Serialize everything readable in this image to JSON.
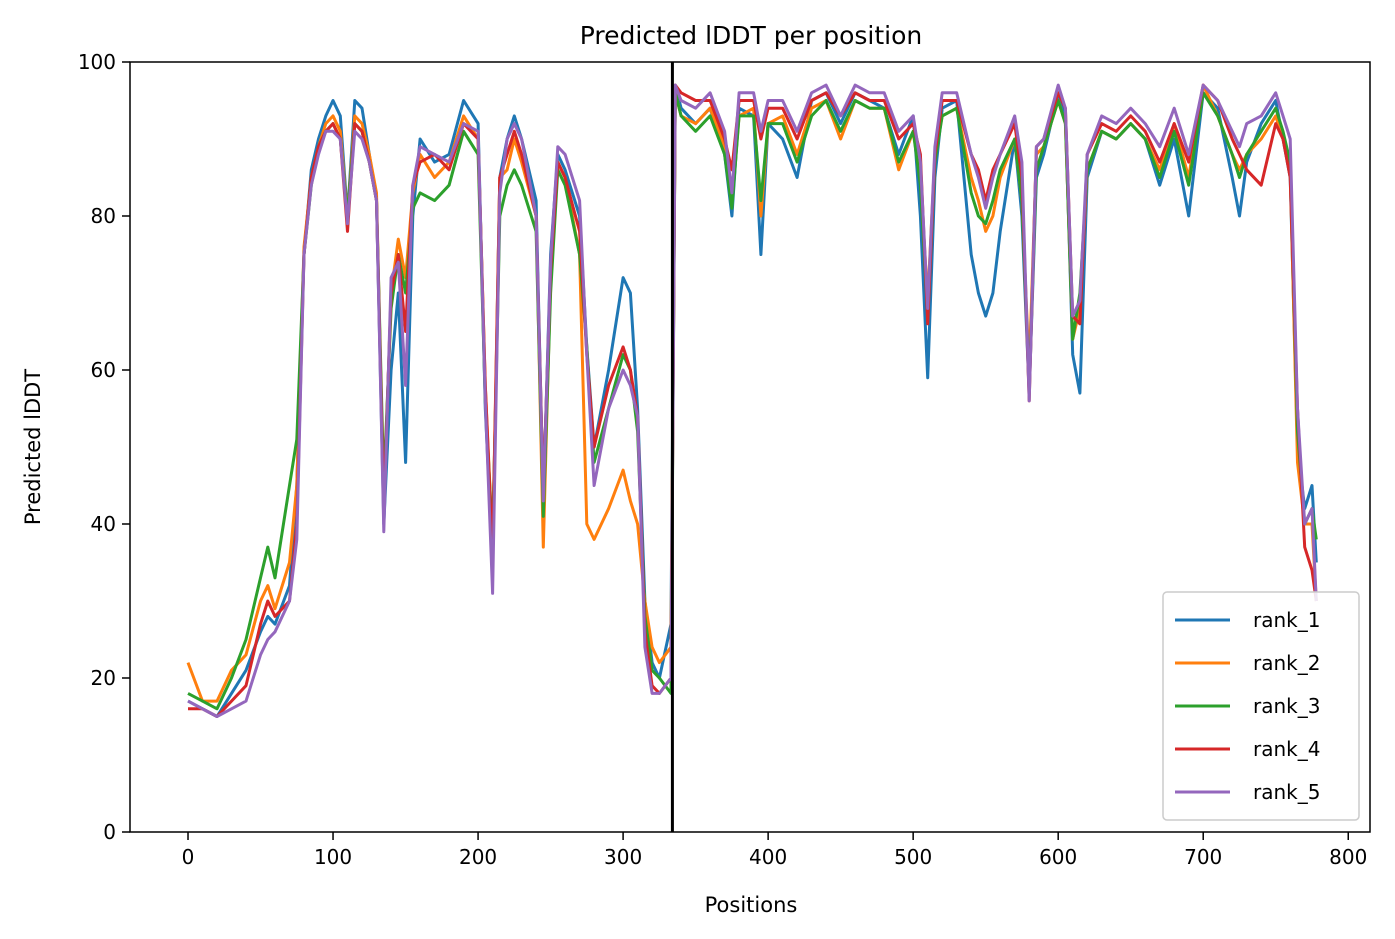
{
  "chart_data": {
    "type": "line",
    "title": "Predicted lDDT per position",
    "xlabel": "Positions",
    "ylabel": "Predicted lDDT",
    "xlim": [
      -40,
      815
    ],
    "ylim": [
      0,
      100
    ],
    "xticks": [
      0,
      100,
      200,
      300,
      400,
      500,
      600,
      700,
      800
    ],
    "yticks": [
      0,
      20,
      40,
      60,
      80,
      100
    ],
    "xtick_labels": [
      "0",
      "100",
      "200",
      "300",
      "400",
      "500",
      "600",
      "700",
      "800"
    ],
    "ytick_labels": [
      "0",
      "20",
      "40",
      "60",
      "80",
      "100"
    ],
    "grid": false,
    "legend_position": "lower-right",
    "chain_break_x": 334,
    "x": [
      0,
      10,
      20,
      30,
      40,
      50,
      55,
      60,
      70,
      75,
      80,
      85,
      90,
      95,
      100,
      105,
      110,
      115,
      120,
      125,
      130,
      135,
      140,
      145,
      150,
      155,
      160,
      170,
      180,
      190,
      200,
      205,
      210,
      215,
      220,
      225,
      230,
      240,
      245,
      250,
      255,
      260,
      270,
      275,
      280,
      290,
      300,
      305,
      310,
      315,
      320,
      325,
      333,
      336,
      340,
      350,
      360,
      370,
      375,
      380,
      390,
      395,
      400,
      410,
      420,
      430,
      440,
      450,
      460,
      470,
      480,
      490,
      500,
      505,
      510,
      515,
      520,
      530,
      540,
      545,
      550,
      555,
      560,
      570,
      575,
      580,
      585,
      590,
      600,
      605,
      610,
      615,
      620,
      630,
      640,
      650,
      660,
      670,
      680,
      690,
      700,
      710,
      720,
      725,
      730,
      740,
      750,
      755,
      760,
      765,
      770,
      775,
      778
    ],
    "series": [
      {
        "name": "rank_1",
        "color": "#1f77b4",
        "values": [
          17,
          16,
          15,
          18,
          21,
          26,
          28,
          27,
          32,
          45,
          75,
          86,
          90,
          93,
          95,
          93,
          80,
          95,
          94,
          88,
          82,
          40,
          60,
          70,
          48,
          80,
          90,
          87,
          88,
          95,
          92,
          55,
          35,
          85,
          90,
          93,
          90,
          82,
          43,
          75,
          88,
          86,
          80,
          63,
          50,
          60,
          72,
          70,
          55,
          30,
          22,
          20,
          27,
          97,
          94,
          92,
          94,
          88,
          80,
          94,
          93,
          75,
          92,
          90,
          85,
          95,
          96,
          92,
          96,
          95,
          94,
          88,
          93,
          80,
          59,
          85,
          94,
          95,
          75,
          70,
          67,
          70,
          78,
          90,
          80,
          57,
          85,
          88,
          96,
          93,
          62,
          57,
          85,
          91,
          90,
          92,
          90,
          84,
          90,
          80,
          96,
          94,
          85,
          80,
          87,
          92,
          95,
          90,
          85,
          50,
          42,
          45,
          35
        ]
      },
      {
        "name": "rank_2",
        "color": "#ff7f0e",
        "values": [
          22,
          17,
          17,
          21,
          23,
          30,
          32,
          29,
          35,
          45,
          76,
          85,
          89,
          92,
          93,
          91,
          80,
          93,
          92,
          88,
          83,
          42,
          70,
          77,
          72,
          83,
          88,
          85,
          87,
          93,
          90,
          58,
          37,
          85,
          86,
          90,
          87,
          80,
          37,
          72,
          87,
          85,
          75,
          40,
          38,
          42,
          47,
          43,
          40,
          30,
          24,
          22,
          24,
          96,
          93,
          92,
          94,
          89,
          82,
          93,
          94,
          80,
          92,
          93,
          88,
          94,
          95,
          90,
          95,
          94,
          94,
          86,
          91,
          85,
          69,
          88,
          93,
          94,
          85,
          82,
          78,
          80,
          85,
          90,
          82,
          60,
          88,
          89,
          95,
          92,
          64,
          68,
          86,
          91,
          90,
          92,
          90,
          86,
          92,
          85,
          97,
          93,
          88,
          86,
          88,
          90,
          93,
          90,
          86,
          48,
          40,
          40,
          30
        ]
      },
      {
        "name": "rank_3",
        "color": "#2ca02c",
        "values": [
          18,
          17,
          16,
          20,
          25,
          33,
          37,
          33,
          45,
          51,
          75,
          84,
          89,
          91,
          92,
          90,
          80,
          92,
          91,
          87,
          82,
          45,
          68,
          75,
          70,
          81,
          83,
          82,
          84,
          91,
          88,
          56,
          38,
          80,
          84,
          86,
          84,
          78,
          41,
          70,
          86,
          84,
          75,
          63,
          48,
          55,
          62,
          60,
          52,
          28,
          21,
          20,
          18,
          96,
          93,
          91,
          93,
          88,
          81,
          93,
          93,
          82,
          92,
          92,
          87,
          93,
          95,
          91,
          95,
          94,
          94,
          87,
          91,
          84,
          67,
          87,
          93,
          94,
          83,
          80,
          79,
          82,
          86,
          90,
          82,
          58,
          86,
          89,
          95,
          92,
          64,
          70,
          86,
          91,
          90,
          92,
          90,
          85,
          91,
          84,
          96,
          93,
          88,
          85,
          88,
          91,
          94,
          91,
          87,
          52,
          40,
          42,
          38
        ]
      },
      {
        "name": "rank_4",
        "color": "#d62728",
        "values": [
          16,
          16,
          15,
          17,
          19,
          27,
          30,
          28,
          30,
          40,
          75,
          85,
          89,
          91,
          92,
          90,
          78,
          92,
          91,
          87,
          82,
          42,
          70,
          75,
          65,
          84,
          87,
          88,
          86,
          92,
          90,
          58,
          36,
          85,
          88,
          91,
          88,
          80,
          44,
          73,
          87,
          85,
          78,
          62,
          50,
          58,
          63,
          60,
          54,
          26,
          19,
          18,
          20,
          97,
          96,
          95,
          95,
          90,
          86,
          95,
          95,
          90,
          94,
          94,
          90,
          95,
          96,
          93,
          96,
          95,
          95,
          90,
          92,
          88,
          66,
          88,
          95,
          95,
          88,
          86,
          82,
          86,
          88,
          92,
          85,
          56,
          89,
          90,
          96,
          94,
          67,
          66,
          88,
          92,
          91,
          93,
          91,
          87,
          92,
          87,
          97,
          95,
          90,
          88,
          86,
          84,
          92,
          90,
          85,
          55,
          37,
          34,
          30
        ]
      },
      {
        "name": "rank_5",
        "color": "#9467bd",
        "values": [
          17,
          16,
          15,
          16,
          17,
          23,
          25,
          26,
          30,
          38,
          75,
          84,
          88,
          91,
          91,
          90,
          79,
          91,
          90,
          87,
          82,
          39,
          72,
          74,
          58,
          84,
          89,
          88,
          87,
          92,
          91,
          56,
          31,
          83,
          90,
          92,
          90,
          80,
          43,
          74,
          89,
          88,
          82,
          62,
          45,
          55,
          60,
          58,
          54,
          24,
          18,
          18,
          20,
          97,
          95,
          94,
          96,
          91,
          83,
          96,
          96,
          91,
          95,
          95,
          91,
          96,
          97,
          93,
          97,
          96,
          96,
          91,
          93,
          87,
          68,
          89,
          96,
          96,
          88,
          85,
          81,
          85,
          88,
          93,
          87,
          56,
          89,
          90,
          97,
          94,
          67,
          69,
          88,
          93,
          92,
          94,
          92,
          89,
          94,
          88,
          97,
          95,
          91,
          89,
          92,
          93,
          96,
          93,
          90,
          55,
          40,
          42,
          30
        ]
      }
    ]
  }
}
